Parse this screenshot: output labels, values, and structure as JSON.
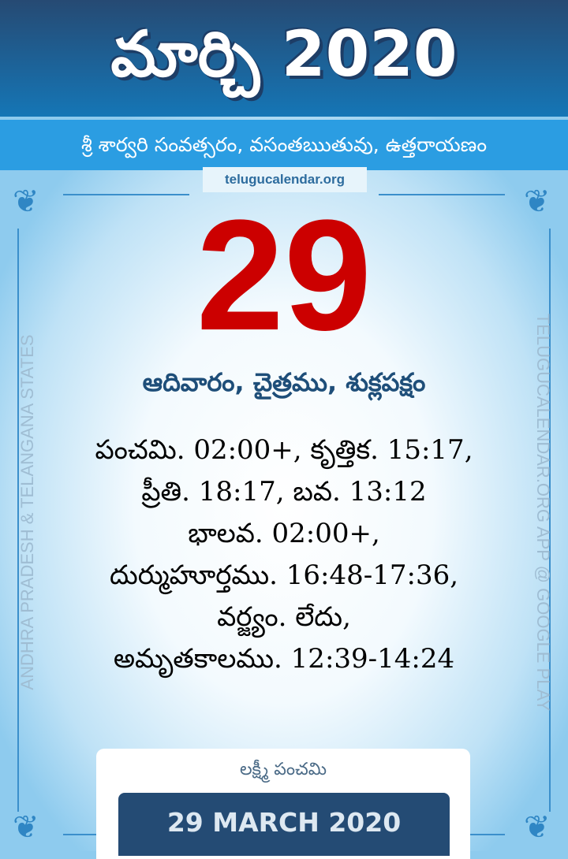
{
  "header": {
    "title": "మార్చి 2020",
    "subtitle": "శ్రీ శార్వరి సంవత్సరం, వసంతఋతువు, ఉత్తరాయణం",
    "site": "telugucalendar.org"
  },
  "main": {
    "day_number": "29",
    "day_line": "ఆదివారం, చైత్రము, శుక్లపక్షం",
    "details": [
      "పంచమి. 02:00+,  కృత్తిక. 15:17,",
      "ప్రీతి. 18:17,  బవ. 13:12",
      "భాలవ. 02:00+,",
      "దుర్ముహూర్తము. 16:48-17:36,",
      "వర్జ్యం. లేదు,",
      "అమృతకాలము. 12:39-14:24"
    ]
  },
  "side": {
    "left": "ANDHRA PRADESH & TELANGANA STATES",
    "right": "TELUGUCALENDAR.ORG APP @ GOOGLE PLAY"
  },
  "footer": {
    "festival": "లక్ష్మీ పంచమి",
    "date": "29 MARCH 2020"
  },
  "colors": {
    "header": "#264a73",
    "band": "#2b9de2",
    "day_number": "#cc0000",
    "day_line": "#1e4e79",
    "date_box": "#244b74"
  }
}
